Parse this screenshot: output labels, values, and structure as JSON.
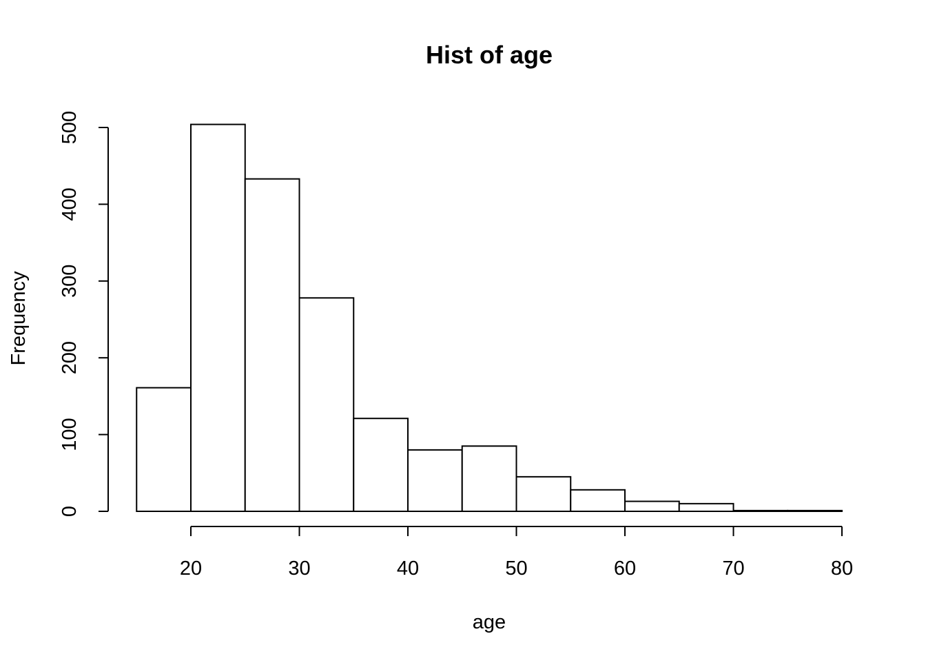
{
  "chart_data": {
    "type": "bar",
    "title": "Hist of age",
    "xlabel": "age",
    "ylabel": "Frequency",
    "bins": [
      {
        "start": 15,
        "end": 20,
        "count": 161
      },
      {
        "start": 20,
        "end": 25,
        "count": 504
      },
      {
        "start": 25,
        "end": 30,
        "count": 433
      },
      {
        "start": 30,
        "end": 35,
        "count": 278
      },
      {
        "start": 35,
        "end": 40,
        "count": 121
      },
      {
        "start": 40,
        "end": 45,
        "count": 80
      },
      {
        "start": 45,
        "end": 50,
        "count": 85
      },
      {
        "start": 50,
        "end": 55,
        "count": 45
      },
      {
        "start": 55,
        "end": 60,
        "count": 28
      },
      {
        "start": 60,
        "end": 65,
        "count": 13
      },
      {
        "start": 65,
        "end": 70,
        "count": 10
      },
      {
        "start": 70,
        "end": 75,
        "count": 1
      },
      {
        "start": 75,
        "end": 80,
        "count": 1
      }
    ],
    "xlim": [
      15,
      80
    ],
    "ylim": [
      0,
      504
    ],
    "x_ticks": [
      20,
      30,
      40,
      50,
      60,
      70,
      80
    ],
    "y_ticks": [
      0,
      100,
      200,
      300,
      400,
      500
    ],
    "grid": false,
    "bar_fill": "#ffffff",
    "bar_stroke": "#000000"
  }
}
